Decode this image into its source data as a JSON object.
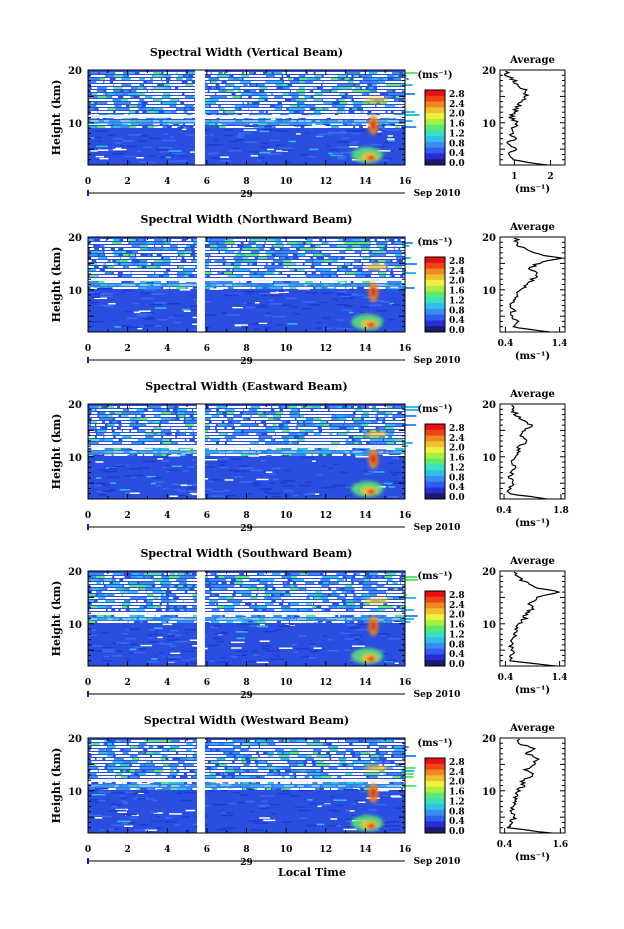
{
  "figure": {
    "x_axis_title": "Local Time",
    "day_label": "29",
    "month_year_label": "Sep 2010"
  },
  "colorbar": {
    "unit_label": "(ms⁻¹)",
    "tick_labels": [
      "2.8",
      "2.4",
      "2.0",
      "1.6",
      "1.2",
      "0.8",
      "0.4",
      "0.0"
    ],
    "colors": [
      "#1a1a6e",
      "#2a2ad8",
      "#2f5ff0",
      "#3a8cf0",
      "#2fc0e8",
      "#3ae0c0",
      "#5ee870",
      "#a8f040",
      "#f0f040",
      "#f0c030",
      "#f08820",
      "#f04418",
      "#e81010"
    ]
  },
  "chart_data": [
    {
      "type": "heatmap",
      "title": "Spectral Width (Vertical Beam)",
      "xlabel": "Local Time",
      "ylabel": "Height (km)",
      "xlim": [
        0,
        16
      ],
      "ylim": [
        2,
        20
      ],
      "x_ticks": [
        "0",
        "2",
        "4",
        "6",
        "8",
        "10",
        "12",
        "14",
        "16"
      ],
      "y_ticks": [
        "10",
        "20"
      ],
      "data_gap_hours": [
        5.4,
        5.9
      ],
      "profile": {
        "title": "Average",
        "xlabel": "(ms⁻¹)",
        "xlim": [
          0.6,
          2.4
        ],
        "x_ticks": [
          "1",
          "2"
        ],
        "heights": [
          2,
          3,
          4,
          5,
          6,
          7,
          8,
          9,
          10,
          11,
          12,
          13,
          14,
          15,
          16,
          17,
          18,
          19
        ],
        "values": [
          1.9,
          0.9,
          0.85,
          1.05,
          0.8,
          1.0,
          0.9,
          0.95,
          1.1,
          0.9,
          1.0,
          1.1,
          1.2,
          1.3,
          1.35,
          1.1,
          1.0,
          0.8
        ]
      }
    },
    {
      "type": "heatmap",
      "title": "Spectral Width (Northward Beam)",
      "xlabel": "Local Time",
      "ylabel": "Height (km)",
      "xlim": [
        0,
        16
      ],
      "ylim": [
        2,
        20
      ],
      "x_ticks": [
        "0",
        "2",
        "4",
        "6",
        "8",
        "10",
        "12",
        "14",
        "16"
      ],
      "y_ticks": [
        "10",
        "20"
      ],
      "data_gap_hours": [
        5.5,
        5.9
      ],
      "profile": {
        "title": "Average",
        "xlabel": "(ms⁻¹)",
        "xlim": [
          0.3,
          1.5
        ],
        "x_ticks": [
          "0.4",
          "1.4"
        ],
        "heights": [
          2,
          3,
          4,
          5,
          6,
          7,
          8,
          9,
          10,
          11,
          12,
          13,
          14,
          15,
          16,
          17,
          18,
          19
        ],
        "values": [
          1.2,
          0.5,
          0.6,
          0.5,
          0.55,
          0.5,
          0.55,
          0.6,
          0.7,
          0.8,
          0.9,
          1.0,
          0.85,
          1.0,
          1.4,
          0.9,
          0.7,
          0.6
        ]
      }
    },
    {
      "type": "heatmap",
      "title": "Spectral Width (Eastward Beam)",
      "xlabel": "Local Time",
      "ylabel": "Height (km)",
      "xlim": [
        0,
        16
      ],
      "ylim": [
        2,
        20
      ],
      "x_ticks": [
        "0",
        "2",
        "4",
        "6",
        "8",
        "10",
        "12",
        "14",
        "16"
      ],
      "y_ticks": [
        "10",
        "20"
      ],
      "data_gap_hours": [
        5.5,
        5.9
      ],
      "profile": {
        "title": "Average",
        "xlabel": "(ms⁻¹)",
        "xlim": [
          0.3,
          1.9
        ],
        "x_ticks": [
          "0.4",
          "1.8"
        ],
        "heights": [
          2,
          3,
          4,
          5,
          6,
          7,
          8,
          9,
          10,
          11,
          12,
          13,
          14,
          15,
          16,
          17,
          18,
          19
        ],
        "values": [
          1.5,
          0.5,
          0.55,
          0.6,
          0.55,
          0.6,
          0.65,
          0.6,
          0.7,
          0.8,
          0.75,
          1.0,
          0.8,
          0.9,
          1.1,
          0.8,
          0.7,
          0.6
        ]
      }
    },
    {
      "type": "heatmap",
      "title": "Spectral Width (Southward Beam)",
      "xlabel": "Local Time",
      "ylabel": "Height (km)",
      "xlim": [
        0,
        16
      ],
      "ylim": [
        2,
        20
      ],
      "x_ticks": [
        "0",
        "2",
        "4",
        "6",
        "8",
        "10",
        "12",
        "14",
        "16"
      ],
      "y_ticks": [
        "10",
        "20"
      ],
      "data_gap_hours": [
        5.5,
        5.9
      ],
      "profile": {
        "title": "Average",
        "xlabel": "(ms⁻¹)",
        "xlim": [
          0.3,
          1.5
        ],
        "x_ticks": [
          "0.4",
          "1.4"
        ],
        "heights": [
          2,
          3,
          4,
          5,
          6,
          7,
          8,
          9,
          10,
          11,
          12,
          13,
          14,
          15,
          16,
          17,
          18,
          19
        ],
        "values": [
          1.3,
          0.5,
          0.5,
          0.55,
          0.5,
          0.55,
          0.6,
          0.6,
          0.65,
          0.75,
          0.8,
          0.9,
          0.85,
          1.0,
          1.4,
          0.9,
          0.75,
          0.6
        ]
      }
    },
    {
      "type": "heatmap",
      "title": "Spectral Width (Westward Beam)",
      "xlabel": "Local Time",
      "ylabel": "Height (km)",
      "xlim": [
        0,
        16
      ],
      "ylim": [
        2,
        20
      ],
      "x_ticks": [
        "0",
        "2",
        "4",
        "6",
        "8",
        "10",
        "12",
        "14",
        "16"
      ],
      "y_ticks": [
        "10",
        "20"
      ],
      "data_gap_hours": [
        5.5,
        5.9
      ],
      "profile": {
        "title": "Average",
        "xlabel": "(ms⁻¹)",
        "xlim": [
          0.3,
          1.7
        ],
        "x_ticks": [
          "0.4",
          "1.6"
        ],
        "heights": [
          2,
          3,
          4,
          5,
          6,
          7,
          8,
          9,
          10,
          11,
          12,
          13,
          14,
          15,
          16,
          17,
          18,
          19
        ],
        "values": [
          1.4,
          0.5,
          0.55,
          0.6,
          0.55,
          0.6,
          0.6,
          0.65,
          0.7,
          0.8,
          0.8,
          1.0,
          0.85,
          1.0,
          1.1,
          0.9,
          1.0,
          0.7
        ]
      }
    }
  ]
}
